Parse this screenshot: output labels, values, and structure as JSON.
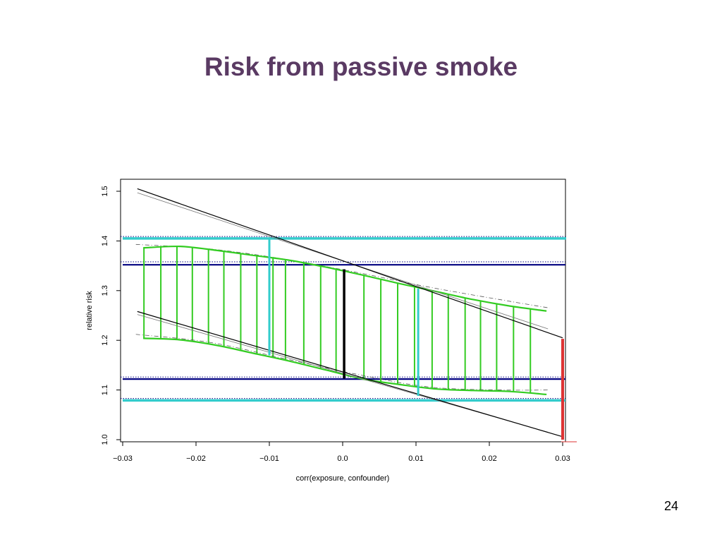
{
  "slide": {
    "title": "Risk from passive smoke",
    "page_number": "24"
  },
  "colors": {
    "title": "#5a3a63",
    "green": "#33cc22",
    "cyan": "#33cccc",
    "navy": "#000080",
    "red": "#dd3333",
    "black": "#000000"
  },
  "chart_data": {
    "type": "line",
    "xlabel": "corr(exposure, confounder)",
    "ylabel": "relative risk",
    "xlim": [
      -0.03,
      0.03
    ],
    "ylim": [
      1.0,
      1.5
    ],
    "x_ticks": [
      -0.03,
      -0.02,
      -0.01,
      0.0,
      0.01,
      0.02,
      0.03
    ],
    "x_tick_labels": [
      "−0.03",
      "−0.02",
      "−0.01",
      "0.0",
      "0.01",
      "0.02",
      "0.03"
    ],
    "y_ticks": [
      1.0,
      1.1,
      1.2,
      1.3,
      1.4,
      1.5
    ],
    "y_tick_labels": [
      "1.0",
      "1.1",
      "1.2",
      "1.3",
      "1.4",
      "1.5"
    ],
    "grid": false,
    "band_upper": {
      "x": [
        -0.0272,
        -0.0222,
        -0.0172,
        -0.0122,
        -0.0072,
        -0.0022,
        0.0028,
        0.0078,
        0.0128,
        0.0178,
        0.0228,
        0.0278
      ],
      "y": [
        1.386,
        1.389,
        1.381,
        1.371,
        1.361,
        1.347,
        1.331,
        1.314,
        1.298,
        1.282,
        1.269,
        1.259
      ]
    },
    "band_lower": {
      "x": [
        -0.0272,
        -0.0222,
        -0.0172,
        -0.0122,
        -0.0072,
        -0.0022,
        0.0028,
        0.0078,
        0.0128,
        0.0178,
        0.0228,
        0.0278
      ],
      "y": [
        1.204,
        1.201,
        1.19,
        1.174,
        1.158,
        1.14,
        1.122,
        1.111,
        1.102,
        1.099,
        1.097,
        1.091
      ]
    },
    "band_upper_dashed": {
      "x": [
        -0.0282,
        -0.0182,
        -0.0082,
        0.0018,
        0.0118,
        0.0218,
        0.0282
      ],
      "y": [
        1.393,
        1.384,
        1.364,
        1.337,
        1.307,
        1.281,
        1.265
      ]
    },
    "band_lower_dashed": {
      "x": [
        -0.0282,
        -0.0182,
        -0.0082,
        0.0018,
        0.0118,
        0.0218,
        0.0282
      ],
      "y": [
        1.212,
        1.196,
        1.164,
        1.132,
        1.106,
        1.1,
        1.1
      ]
    },
    "vertical_ticks_x": [
      -0.0271,
      -0.0248,
      -0.0226,
      -0.0205,
      -0.0183,
      -0.0162,
      -0.0139,
      -0.0117,
      -0.0095,
      -0.0078,
      -0.0053,
      -0.003,
      -0.0009,
      0.0029,
      0.0052,
      0.0075,
      0.0098,
      0.0122,
      0.0144,
      0.0167,
      0.0188,
      0.021,
      0.0233,
      0.0256
    ],
    "black_lines": [
      {
        "x": [
          -0.028,
          0.03
        ],
        "y": [
          1.505,
          1.205
        ]
      },
      {
        "x": [
          -0.028,
          0.03
        ],
        "y": [
          1.258,
          1.006
        ]
      }
    ],
    "thin_gray_lines": [
      {
        "x": [
          -0.028,
          0.028
        ],
        "y": [
          1.497,
          1.223
        ]
      },
      {
        "x": [
          -0.028,
          0.028
        ],
        "y": [
          1.252,
          1.015
        ]
      }
    ],
    "horizontal_lines": {
      "cyan_upper": 1.405,
      "cyan_lower": 1.079,
      "navy_upper": 1.352,
      "navy_lower": 1.122,
      "dotted": [
        1.409,
        1.358,
        1.126,
        1.083
      ]
    },
    "segments": [
      {
        "color": "cyan",
        "x": [
          -0.01,
          -0.01
        ],
        "y": [
          1.405,
          1.17
        ]
      },
      {
        "color": "cyan",
        "x": [
          0.0103,
          0.0103
        ],
        "y": [
          1.304,
          1.088
        ]
      },
      {
        "color": "black",
        "x": [
          0.0002,
          0.0002
        ],
        "y": [
          1.343,
          1.123
        ]
      },
      {
        "color": "red",
        "x": [
          0.03,
          0.03
        ],
        "y": [
          1.203,
          1.0
        ]
      }
    ]
  }
}
